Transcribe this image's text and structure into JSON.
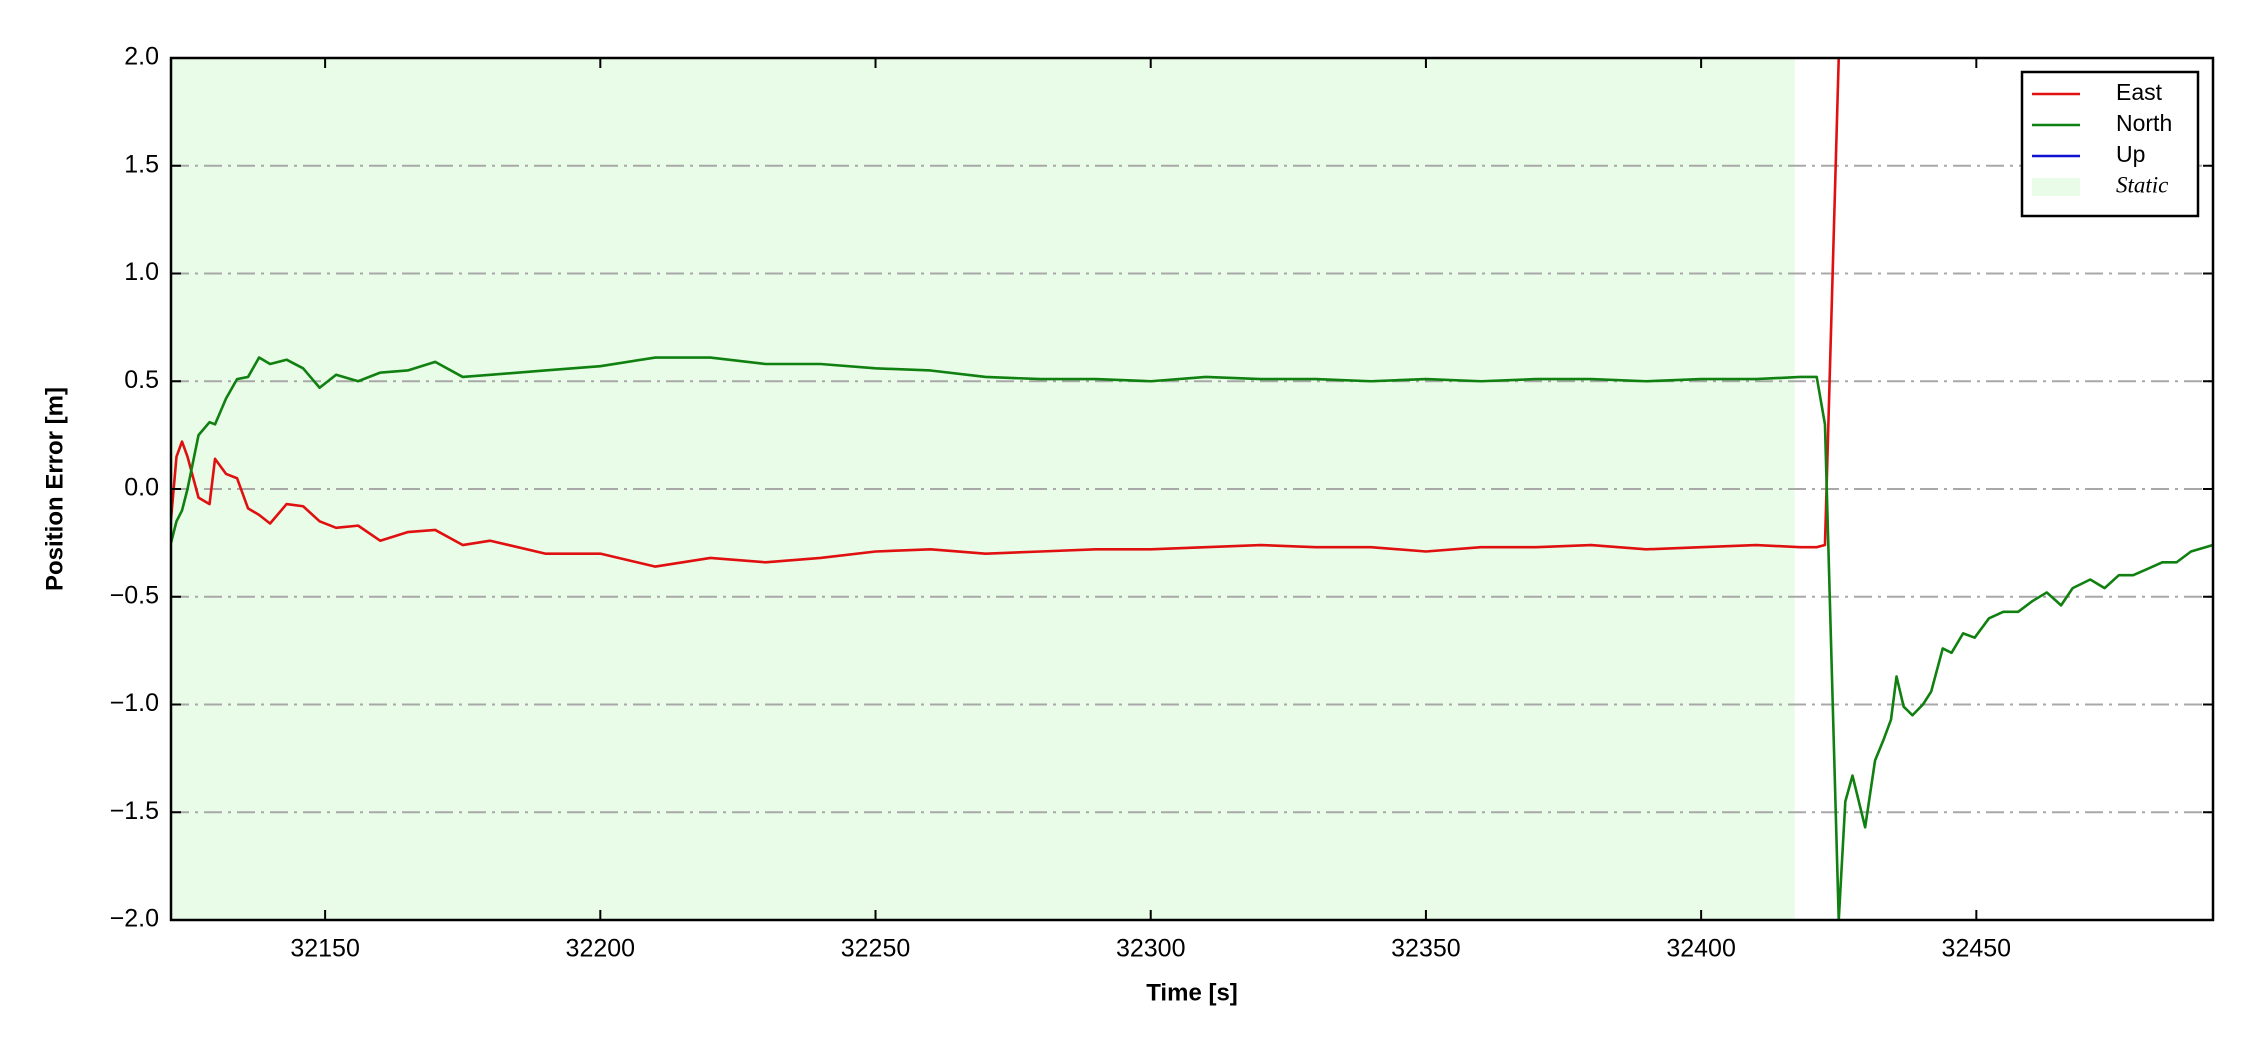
{
  "chart_data": {
    "type": "line",
    "xlabel": "Time [s]",
    "ylabel": "Position Error [m]",
    "x": [
      32122,
      32123,
      32124,
      32125,
      32127,
      32129,
      32130,
      32132,
      32134,
      32136,
      32138,
      32140,
      32143,
      32146,
      32149,
      32152,
      32156,
      32160,
      32165,
      32170,
      32175,
      32180,
      32190,
      32200,
      32210,
      32220,
      32230,
      32240,
      32250,
      32260,
      32270,
      32280,
      32290,
      32300,
      32310,
      32320,
      32330,
      32340,
      32350,
      32360,
      32370,
      32380,
      32390,
      32400,
      32410,
      32418,
      32421,
      32422.5,
      32425,
      32426.2,
      32427.5,
      32429.8,
      32431.6,
      32433.2,
      32434.5,
      32435.5,
      32436.8,
      32438.4,
      32440.3,
      32441.8,
      32443.9,
      32445.5,
      32447.6,
      32449.7,
      32452.3,
      32454.9,
      32457.6,
      32460.2,
      32462.8,
      32465.4,
      32467.5,
      32470.7,
      32473.3,
      32475.9,
      32478.5,
      32481.2,
      32483.8,
      32486.4,
      32489,
      32493
    ],
    "series": [
      {
        "name": "East",
        "color": "#e01010",
        "values": [
          -0.14,
          0.15,
          0.22,
          0.15,
          -0.04,
          -0.07,
          0.14,
          0.07,
          0.05,
          -0.09,
          -0.12,
          -0.16,
          -0.07,
          -0.08,
          -0.15,
          -0.18,
          -0.17,
          -0.24,
          -0.2,
          -0.19,
          -0.26,
          -0.24,
          -0.3,
          -0.3,
          -0.36,
          -0.32,
          -0.34,
          -0.32,
          -0.29,
          -0.28,
          -0.3,
          -0.29,
          -0.28,
          -0.28,
          -0.27,
          -0.26,
          -0.27,
          -0.27,
          -0.29,
          -0.27,
          -0.27,
          -0.26,
          -0.28,
          -0.27,
          -0.26,
          -0.27,
          -0.27,
          -0.26,
          2.0,
          null,
          null,
          null,
          null,
          null,
          null,
          null,
          null,
          null,
          null,
          null,
          null,
          null,
          null,
          null,
          null,
          null,
          null,
          null,
          null,
          null,
          null,
          null,
          null,
          null,
          null,
          null,
          null,
          null,
          null,
          null
        ]
      },
      {
        "name": "North",
        "color": "#108010",
        "values": [
          -0.25,
          -0.15,
          -0.1,
          0.0,
          0.25,
          0.31,
          0.3,
          0.42,
          0.51,
          0.52,
          0.61,
          0.58,
          0.6,
          0.56,
          0.47,
          0.53,
          0.5,
          0.54,
          0.55,
          0.59,
          0.52,
          0.53,
          0.55,
          0.57,
          0.61,
          0.61,
          0.58,
          0.58,
          0.56,
          0.55,
          0.52,
          0.51,
          0.51,
          0.5,
          0.52,
          0.51,
          0.51,
          0.5,
          0.51,
          0.5,
          0.51,
          0.51,
          0.5,
          0.51,
          0.51,
          0.52,
          0.52,
          0.3,
          -2.0,
          -1.45,
          -1.33,
          -1.57,
          -1.26,
          -1.16,
          -1.07,
          -0.87,
          -1.01,
          -1.05,
          -1.0,
          -0.94,
          -0.74,
          -0.76,
          -0.67,
          -0.69,
          -0.6,
          -0.57,
          -0.57,
          -0.52,
          -0.48,
          -0.54,
          -0.46,
          -0.42,
          -0.46,
          -0.4,
          -0.4,
          -0.37,
          -0.34,
          -0.34,
          -0.29,
          -0.26
        ]
      },
      {
        "name": "Up",
        "color": "#1010d0",
        "values": [
          null,
          null,
          null,
          null,
          null,
          null,
          null,
          null,
          null,
          null,
          null,
          null,
          null,
          null,
          null,
          null,
          null,
          null,
          null,
          null,
          null,
          null,
          null,
          null,
          null,
          null,
          null,
          null,
          null,
          null,
          null,
          null,
          null,
          null,
          null,
          null,
          null,
          null,
          null,
          null,
          null,
          null,
          null,
          null,
          null,
          null,
          null,
          null,
          null,
          null,
          null,
          null,
          null,
          null,
          null,
          null,
          null,
          null,
          null,
          null,
          null,
          null,
          null,
          null,
          null,
          null,
          null,
          null,
          null,
          null,
          null,
          null,
          null,
          null,
          null,
          null,
          null,
          null,
          null,
          null
        ]
      }
    ],
    "region": {
      "name": "Static",
      "color": "#e8fce8",
      "span": [
        32122,
        32417
      ]
    },
    "xlim": [
      32122,
      32493
    ],
    "xticks": [
      32150,
      32200,
      32250,
      32300,
      32350,
      32400,
      32450
    ],
    "ylim": [
      -2,
      2
    ],
    "yticks": [
      {
        "value": -2,
        "label": "−2.0"
      },
      {
        "value": -1.5,
        "label": "−1.5"
      },
      {
        "value": -1,
        "label": "−1.0"
      },
      {
        "value": -0.5,
        "label": "−0.5"
      },
      {
        "value": 0,
        "label": "0.0"
      },
      0.5,
      {
        "value": 1,
        "label": "1.0"
      },
      1.5,
      {
        "value": 2,
        "label": "2.0"
      }
    ],
    "grid": true,
    "legend": "upper right"
  }
}
